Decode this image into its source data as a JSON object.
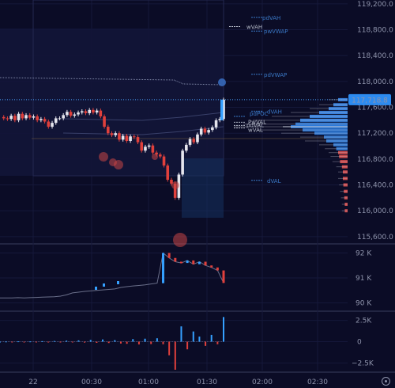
{
  "chart_data": {
    "type": "line",
    "price_axis": {
      "ticks": [
        "119,200.0",
        "118,800.0",
        "118,400.0",
        "118,000.0",
        "117,600.0",
        "117,200.0",
        "116,800.0",
        "116,400.0",
        "116,000.0",
        "115,600.0"
      ],
      "ylim": [
        115500,
        119260
      ],
      "current_price": "117,718.8"
    },
    "time_axis": {
      "ticks": [
        "22",
        "00:30",
        "01:00",
        "01:30",
        "02:00",
        "02:30"
      ]
    },
    "levels": [
      {
        "name": "wVAH",
        "value": 118850,
        "color": "#b7bccb"
      },
      {
        "name": "pdVAH",
        "value": 118990,
        "color": "#3a78c6"
      },
      {
        "name": "pwVWAP",
        "value": 118780,
        "color": "#3a78c6"
      },
      {
        "name": "pdVWAP",
        "value": 118110,
        "color": "#3a78c6"
      },
      {
        "name": "dVAH",
        "value": 117540,
        "color": "#3a78c6"
      },
      {
        "name": "pdPOC",
        "value": 117460,
        "color": "#3a78c6"
      },
      {
        "name": "PwVAL",
        "value": 117370,
        "color": "#b7bccb"
      },
      {
        "name": "pdVAL",
        "value": 117320,
        "color": "#b7bccb"
      },
      {
        "name": "wVAL",
        "value": 117280,
        "color": "#b7bccb"
      },
      {
        "name": "dVAL",
        "value": 116470,
        "color": "#3a78c6"
      }
    ],
    "series": [
      {
        "name": "price",
        "values": [
          117450,
          117430,
          117420,
          117470,
          117400,
          117500,
          117430,
          117480,
          117440,
          117460,
          117400,
          117420,
          117380,
          117300,
          117360,
          117430,
          117430,
          117480,
          117530,
          117470,
          117490,
          117520,
          117540,
          117510,
          117560,
          117520,
          117550,
          117460,
          117300,
          117200,
          117170,
          117200,
          117100,
          117160,
          117080,
          117150,
          117140,
          117060,
          116930,
          116990,
          117010,
          116900,
          116870,
          116840,
          116700,
          116480,
          116420,
          116200,
          116560,
          116930,
          117020,
          117110,
          117060,
          117180,
          117270,
          117210,
          117250,
          117290,
          117400,
          117420,
          117718.8
        ]
      }
    ],
    "panel2_axis": {
      "ticks": [
        "92 K",
        "91 K",
        "90 K"
      ],
      "ylim": [
        89700,
        92300
      ]
    },
    "panel2_values": [
      90200,
      90200,
      90200,
      90210,
      90200,
      90210,
      90220,
      90230,
      90240,
      90250,
      90270,
      90320,
      90400,
      90430,
      90460,
      90480,
      90500,
      90520,
      90540,
      90560,
      90620,
      90650,
      90680,
      90700,
      90720,
      90760,
      90790,
      92000,
      91800,
      91650,
      91600,
      91700,
      91550,
      91650,
      91500,
      91420,
      91300,
      90800
    ],
    "panel3_axis": {
      "ticks": [
        "2.5K",
        "0",
        "−2.5K"
      ],
      "ylim": [
        -3400,
        3400
      ]
    },
    "panel3_values": [
      0,
      20,
      -30,
      40,
      -20,
      30,
      -50,
      60,
      -40,
      80,
      -60,
      120,
      -90,
      150,
      -110,
      200,
      -140,
      260,
      -160,
      180,
      -220,
      -250,
      300,
      -320,
      350,
      -280,
      400,
      -300,
      -1600,
      -3300,
      1800,
      -900,
      1200,
      600,
      -500,
      800,
      -300,
      2900
    ]
  }
}
